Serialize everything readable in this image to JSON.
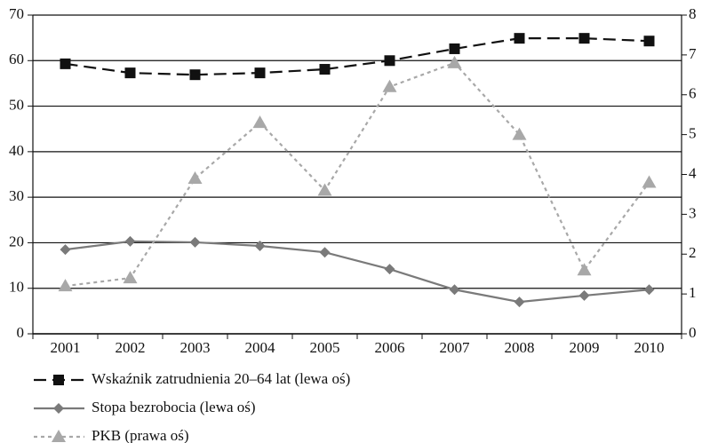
{
  "chart_data": {
    "type": "line",
    "categories": [
      "2001",
      "2002",
      "2003",
      "2004",
      "2005",
      "2006",
      "2007",
      "2008",
      "2009",
      "2010"
    ],
    "series": [
      {
        "name": "Wskaźnik zatrudnienia 20–64 lat (lewa oś)",
        "color": "#111111",
        "marker": "square",
        "line_style": "dashed",
        "axis": "y",
        "values": [
          59.3,
          57.3,
          56.9,
          57.3,
          58.1,
          60.0,
          62.6,
          64.9,
          64.9,
          64.3
        ]
      },
      {
        "name": "Stopa bezrobocia (lewa oś)",
        "color": "#7a7a7a",
        "marker": "diamond",
        "line_style": "solid",
        "axis": "y",
        "values": [
          18.5,
          20.3,
          20.1,
          19.3,
          17.9,
          14.2,
          9.7,
          7.0,
          8.4,
          9.7
        ]
      },
      {
        "name": "PKB (prawa oś)",
        "color": "#a8a8a8",
        "marker": "triangle",
        "line_style": "dotted",
        "axis": "y2",
        "values": [
          1.2,
          1.4,
          3.9,
          5.3,
          3.6,
          6.2,
          6.8,
          5.0,
          1.6,
          3.8
        ]
      }
    ],
    "ylim": [
      0,
      70
    ],
    "yticks": [
      0,
      10,
      20,
      30,
      40,
      50,
      60,
      70
    ],
    "y2lim": [
      0,
      8
    ],
    "y2ticks": [
      0,
      1,
      2,
      3,
      4,
      5,
      6,
      7,
      8
    ],
    "grid": true,
    "legend": "bottom-left"
  }
}
